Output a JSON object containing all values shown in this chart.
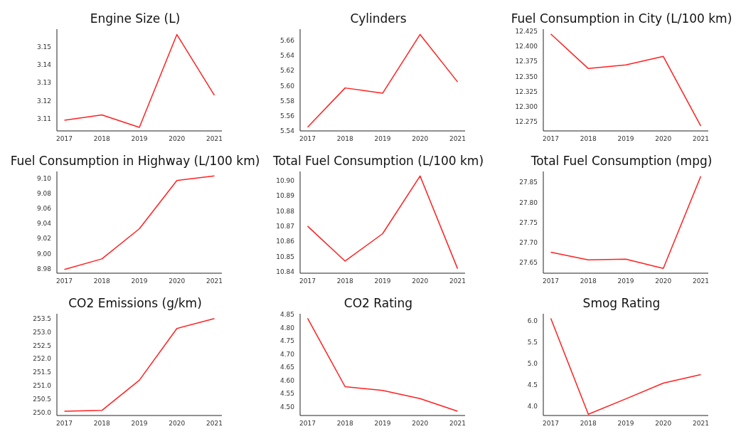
{
  "chart_data": [
    {
      "type": "line",
      "title": "Engine Size (L)",
      "x": [
        2017,
        2018,
        2019,
        2020,
        2021
      ],
      "xlim": [
        2016.8,
        2021.2
      ],
      "xticks": [
        2017,
        2018,
        2019,
        2020,
        2021
      ],
      "ylim": [
        3.103,
        3.16
      ],
      "yticks": [
        3.11,
        3.12,
        3.13,
        3.14,
        3.15
      ],
      "grid": false,
      "series": [
        {
          "color": "#ff2020",
          "values": [
            3.109,
            3.112,
            3.105,
            3.157,
            3.123
          ]
        }
      ]
    },
    {
      "type": "line",
      "title": "Cylinders",
      "x": [
        2017,
        2018,
        2019,
        2020,
        2021
      ],
      "xlim": [
        2016.8,
        2021.2
      ],
      "xticks": [
        2017,
        2018,
        2019,
        2020,
        2021
      ],
      "ylim": [
        5.54,
        5.675
      ],
      "yticks": [
        5.54,
        5.56,
        5.58,
        {
          "value": 5.6,
          "label": "5.60"
        },
        5.62,
        5.64,
        5.66
      ],
      "grid": false,
      "series": [
        {
          "color": "#ff2020",
          "values": [
            5.545,
            5.597,
            5.59,
            5.668,
            5.605
          ]
        }
      ]
    },
    {
      "type": "line",
      "title": "Fuel Consumption in City (L/100 km)",
      "x": [
        2017,
        2018,
        2019,
        2020,
        2021
      ],
      "xlim": [
        2016.8,
        2021.2
      ],
      "xticks": [
        2017,
        2018,
        2019,
        2020,
        2021
      ],
      "ylim": [
        12.26,
        12.428
      ],
      "yticks": [
        {
          "value": 12.275,
          "label": "12.275"
        },
        {
          "value": 12.3,
          "label": "12.300"
        },
        {
          "value": 12.325,
          "label": "12.325"
        },
        {
          "value": 12.35,
          "label": "12.350"
        },
        {
          "value": 12.375,
          "label": "12.375"
        },
        {
          "value": 12.4,
          "label": "12.400"
        },
        {
          "value": 12.425,
          "label": "12.425"
        }
      ],
      "grid": false,
      "series": [
        {
          "color": "#ff2020",
          "values": [
            12.42,
            12.363,
            12.369,
            12.383,
            12.268
          ]
        }
      ]
    },
    {
      "type": "line",
      "title": "Fuel Consumption in Highway (L/100 km)",
      "x": [
        2017,
        2018,
        2019,
        2020,
        2021
      ],
      "xlim": [
        2016.8,
        2021.2
      ],
      "xticks": [
        2017,
        2018,
        2019,
        2020,
        2021
      ],
      "ylim": [
        8.974,
        9.109
      ],
      "yticks": [
        8.98,
        {
          "value": 9,
          "label": "9.00"
        },
        9.02,
        9.04,
        9.06,
        9.08,
        {
          "value": 9.1,
          "label": "9.10"
        }
      ],
      "grid": false,
      "series": [
        {
          "color": "#ff2020",
          "values": [
            8.979,
            8.993,
            9.033,
            9.097,
            9.103
          ]
        }
      ]
    },
    {
      "type": "line",
      "title": "Total Fuel Consumption (L/100 km)",
      "x": [
        2017,
        2018,
        2019,
        2020,
        2021
      ],
      "xlim": [
        2016.8,
        2021.2
      ],
      "xticks": [
        2017,
        2018,
        2019,
        2020,
        2021
      ],
      "ylim": [
        10.839,
        10.906
      ],
      "yticks": [
        10.84,
        10.85,
        10.86,
        10.87,
        10.88,
        10.89,
        {
          "value": 10.9,
          "label": "10.90"
        }
      ],
      "grid": false,
      "series": [
        {
          "color": "#ff2020",
          "values": [
            10.87,
            10.847,
            10.865,
            10.903,
            10.842
          ]
        }
      ]
    },
    {
      "type": "line",
      "title": "Total Fuel Consumption (mpg)",
      "x": [
        2017,
        2018,
        2019,
        2020,
        2021
      ],
      "xlim": [
        2016.8,
        2021.2
      ],
      "xticks": [
        2017,
        2018,
        2019,
        2020,
        2021
      ],
      "ylim": [
        27.624,
        27.877
      ],
      "yticks": [
        27.65,
        {
          "value": 27.7,
          "label": "27.70"
        },
        27.75,
        {
          "value": 27.8,
          "label": "27.80"
        },
        27.85
      ],
      "grid": false,
      "series": [
        {
          "color": "#ff2020",
          "values": [
            27.676,
            27.657,
            27.659,
            27.636,
            27.865
          ]
        }
      ]
    },
    {
      "type": "line",
      "title": "CO2 Emissions (g/km)",
      "x": [
        2017,
        2018,
        2019,
        2020,
        2021
      ],
      "xlim": [
        2016.8,
        2021.2
      ],
      "xticks": [
        2017,
        2018,
        2019,
        2020,
        2021
      ],
      "ylim": [
        249.88,
        253.68
      ],
      "yticks": [
        {
          "value": 250,
          "label": "250.0"
        },
        250.5,
        {
          "value": 251,
          "label": "251.0"
        },
        251.5,
        {
          "value": 252,
          "label": "252.0"
        },
        252.5,
        {
          "value": 253,
          "label": "253.0"
        },
        253.5
      ],
      "grid": false,
      "series": [
        {
          "color": "#ff2020",
          "values": [
            250.04,
            250.07,
            251.2,
            253.13,
            253.5
          ]
        }
      ]
    },
    {
      "type": "line",
      "title": "CO2 Rating",
      "x": [
        2017,
        2018,
        2019,
        2020,
        2021
      ],
      "xlim": [
        2016.8,
        2021.2
      ],
      "xticks": [
        2017,
        2018,
        2019,
        2020,
        2021
      ],
      "ylim": [
        4.467,
        4.852
      ],
      "yticks": [
        {
          "value": 4.5,
          "label": "4.50"
        },
        4.55,
        {
          "value": 4.6,
          "label": "4.60"
        },
        4.65,
        {
          "value": 4.7,
          "label": "4.70"
        },
        4.75,
        {
          "value": 4.8,
          "label": "4.80"
        },
        4.85
      ],
      "grid": false,
      "series": [
        {
          "color": "#ff2020",
          "values": [
            4.835,
            4.576,
            4.562,
            4.531,
            4.483
          ]
        }
      ]
    },
    {
      "type": "line",
      "title": "Smog Rating",
      "x": [
        2017,
        2018,
        2019,
        2020,
        2021
      ],
      "xlim": [
        2016.8,
        2021.2
      ],
      "xticks": [
        2017,
        2018,
        2019,
        2020,
        2021
      ],
      "ylim": [
        3.78,
        6.17
      ],
      "yticks": [
        {
          "value": 4,
          "label": "4.0"
        },
        4.5,
        {
          "value": 5,
          "label": "5.0"
        },
        5.5,
        {
          "value": 6,
          "label": "6.0"
        }
      ],
      "grid": false,
      "series": [
        {
          "color": "#ff2020",
          "values": [
            6.06,
            3.81,
            4.17,
            4.54,
            4.74
          ]
        }
      ]
    }
  ]
}
